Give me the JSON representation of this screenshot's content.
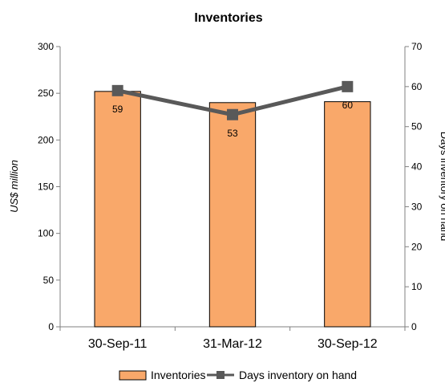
{
  "chart_data": {
    "type": "bar",
    "title": "Inventories",
    "categories": [
      "30-Sep-11",
      "31-Mar-12",
      "30-Sep-12"
    ],
    "ylabel": "US$ million",
    "y2label": "Days inventory on hand",
    "ylim": [
      0,
      300
    ],
    "y2lim": [
      0,
      70
    ],
    "yticks": [
      0,
      50,
      100,
      150,
      200,
      250,
      300
    ],
    "y2ticks": [
      0,
      10,
      20,
      30,
      40,
      50,
      60,
      70
    ],
    "legend_position": "bottom",
    "grid": false,
    "series": [
      {
        "name": "Inventories",
        "type": "bar",
        "axis": "left",
        "values": [
          252,
          240,
          241
        ],
        "color": "#f9a86a",
        "border": "#000000"
      },
      {
        "name": "Days inventory on hand",
        "type": "line",
        "axis": "right",
        "values": [
          59,
          53,
          60
        ],
        "color": "#595959",
        "marker": "square"
      }
    ]
  }
}
